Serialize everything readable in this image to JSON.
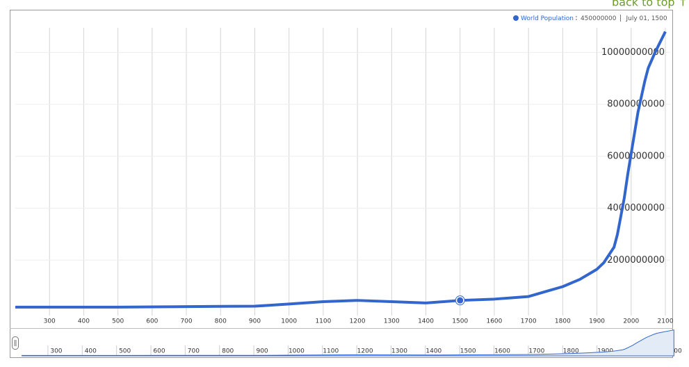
{
  "back_to_top": "back to top ↑",
  "chart_data": {
    "type": "line",
    "legend": {
      "value": 450000000,
      "date": "July 01, 1500"
    },
    "x": [
      200,
      400,
      500,
      600,
      700,
      800,
      900,
      1000,
      1100,
      1200,
      1300,
      1400,
      1500,
      1600,
      1650,
      1700,
      1750,
      1800,
      1850,
      1900,
      1920,
      1940,
      1950,
      1960,
      1970,
      1980,
      1990,
      2000,
      2010,
      2020,
      2030,
      2040,
      2050,
      2070,
      2100
    ],
    "series": [
      {
        "name": "World Population",
        "color": "#3366cc",
        "values": [
          190000000,
          190000000,
          190000000,
          200000000,
          210000000,
          220000000,
          226000000,
          310000000,
          400000000,
          450000000,
          400000000,
          350000000,
          450000000,
          500000000,
          550000000,
          600000000,
          790000000,
          980000000,
          1260000000,
          1650000000,
          1900000000,
          2300000000,
          2500000000,
          3000000000,
          3700000000,
          4400000000,
          5300000000,
          6100000000,
          6900000000,
          7700000000,
          8300000000,
          8900000000,
          9400000000,
          10000000000,
          10800000000
        ]
      }
    ],
    "highlight_index": 12,
    "xlim": [
      200,
      2100
    ],
    "xticks": [
      300,
      400,
      500,
      600,
      700,
      800,
      900,
      1000,
      1100,
      1200,
      1300,
      1400,
      1500,
      1600,
      1700,
      1800,
      1900,
      2000,
      2100
    ],
    "ylim": [
      0,
      11000000000
    ],
    "yticks": [
      2000000000,
      4000000000,
      6000000000,
      8000000000,
      10000000000
    ],
    "grid": true
  }
}
